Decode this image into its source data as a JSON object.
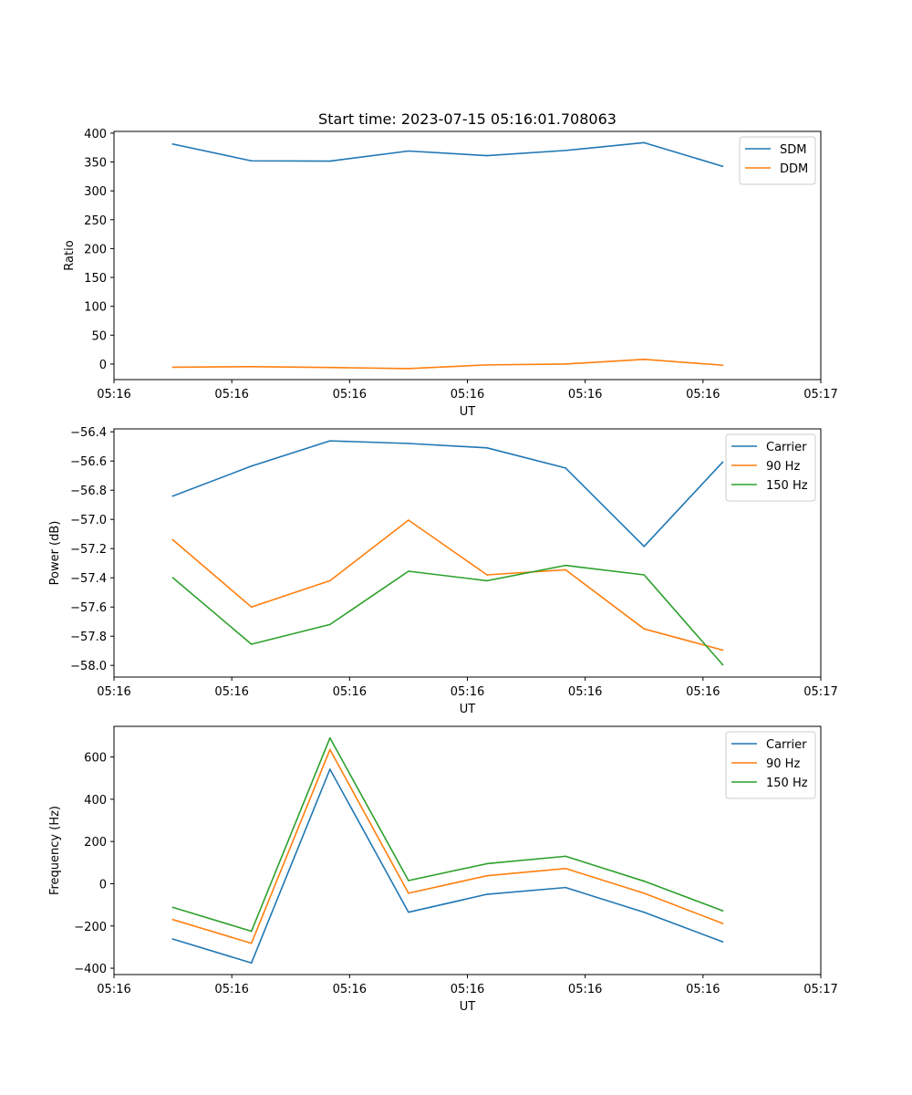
{
  "chart_data": [
    {
      "type": "line",
      "title": "Start time: 2023-07-15 05:16:01.708063",
      "xlabel": "UT",
      "ylabel": "Ratio",
      "xlim": [
        0,
        9
      ],
      "x": [
        0.75,
        1.75,
        2.75,
        3.75,
        4.75,
        5.75,
        6.75,
        7.75
      ],
      "xticks": [
        0,
        1.5,
        3,
        4.5,
        6,
        7.5,
        9
      ],
      "xticklabels": [
        "05:16",
        "05:16",
        "05:16",
        "05:16",
        "05:16",
        "05:16",
        "05:17"
      ],
      "ylim": [
        -27,
        403
      ],
      "yticks": [
        0,
        50,
        100,
        150,
        200,
        250,
        300,
        350,
        400
      ],
      "yticklabels": [
        "0",
        "50",
        "100",
        "150",
        "200",
        "250",
        "300",
        "350",
        "400"
      ],
      "legend_position": "top-right",
      "series": [
        {
          "name": "SDM",
          "color": "#1f77b4",
          "values": [
            381,
            352,
            351.5,
            369,
            361,
            370,
            383.5,
            342.5
          ]
        },
        {
          "name": "DDM",
          "color": "#ff7f0e",
          "values": [
            -5.5,
            -4.5,
            -6,
            -8,
            -1.5,
            0,
            8,
            -2
          ]
        }
      ]
    },
    {
      "type": "line",
      "title": "",
      "xlabel": "UT",
      "ylabel": "Power (dB)",
      "xlim": [
        0,
        9
      ],
      "x": [
        0.75,
        1.75,
        2.75,
        3.75,
        4.75,
        5.75,
        6.75,
        7.75
      ],
      "xticks": [
        0,
        1.5,
        3,
        4.5,
        6,
        7.5,
        9
      ],
      "xticklabels": [
        "05:16",
        "05:16",
        "05:16",
        "05:16",
        "05:16",
        "05:16",
        "05:17"
      ],
      "ylim": [
        -58.08,
        -56.38
      ],
      "yticks": [
        -58.0,
        -57.8,
        -57.6,
        -57.4,
        -57.2,
        -57.0,
        -56.8,
        -56.6,
        -56.4
      ],
      "yticklabels": [
        "−58.0",
        "−57.8",
        "−57.6",
        "−57.4",
        "−57.2",
        "−57.0",
        "−56.8",
        "−56.6",
        "−56.4"
      ],
      "legend_position": "top-right",
      "series": [
        {
          "name": "Carrier",
          "color": "#1f77b4",
          "values": [
            -56.84,
            -56.635,
            -56.462,
            -56.48,
            -56.51,
            -56.648,
            -57.185,
            -56.608
          ]
        },
        {
          "name": "90 Hz",
          "color": "#ff7f0e",
          "values": [
            -57.14,
            -57.6,
            -57.42,
            -57.005,
            -57.38,
            -57.345,
            -57.75,
            -57.895
          ]
        },
        {
          "name": "150 Hz",
          "color": "#2ca02c",
          "values": [
            -57.4,
            -57.855,
            -57.72,
            -57.355,
            -57.42,
            -57.315,
            -57.38,
            -57.995
          ]
        }
      ]
    },
    {
      "type": "line",
      "title": "",
      "xlabel": "UT",
      "ylabel": "Frequency (Hz)",
      "xlim": [
        0,
        9
      ],
      "x": [
        0.75,
        1.75,
        2.75,
        3.75,
        4.75,
        5.75,
        6.75,
        7.75
      ],
      "xticks": [
        0,
        1.5,
        3,
        4.5,
        6,
        7.5,
        9
      ],
      "xticklabels": [
        "05:16",
        "05:16",
        "05:16",
        "05:16",
        "05:16",
        "05:16",
        "05:17"
      ],
      "ylim": [
        -430,
        745
      ],
      "yticks": [
        -400,
        -200,
        0,
        200,
        400,
        600
      ],
      "yticklabels": [
        "−400",
        "−200",
        "0",
        "200",
        "400",
        "600"
      ],
      "legend_position": "top-right",
      "series": [
        {
          "name": "Carrier",
          "color": "#1f77b4",
          "values": [
            -262,
            -375,
            542,
            -135,
            -50,
            -18,
            -135,
            -275
          ]
        },
        {
          "name": "90 Hz",
          "color": "#ff7f0e",
          "values": [
            -170,
            -282,
            635,
            -45,
            38,
            72,
            -45,
            -188
          ]
        },
        {
          "name": "150 Hz",
          "color": "#2ca02c",
          "values": [
            -112,
            -225,
            690,
            15,
            95,
            130,
            12,
            -128
          ]
        }
      ]
    }
  ]
}
